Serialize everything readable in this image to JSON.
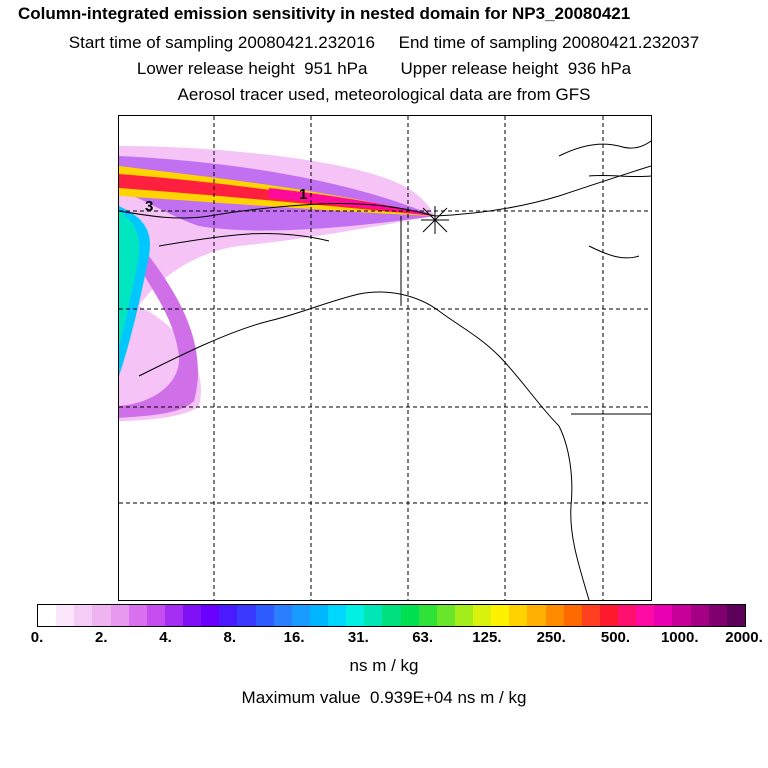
{
  "header": {
    "title": "Column-integrated emission sensitivity in nested domain for NP3_20080421",
    "start_label": "Start time of sampling 20080421.232016",
    "end_label": "End time of sampling 20080421.232037",
    "lower_label": "Lower release height  951 hPa",
    "upper_label": "Upper release height  936 hPa",
    "tracer_label": "Aerosol tracer used, meteorological data are from GFS"
  },
  "map": {
    "labels": [
      {
        "text": "1"
      },
      {
        "text": "3"
      }
    ]
  },
  "colorbar": {
    "colors": [
      "#ffffff",
      "#fbe6fb",
      "#f5ccf5",
      "#efb3f0",
      "#e699ee",
      "#d970ee",
      "#c64ef0",
      "#a52ef3",
      "#8010f5",
      "#6a00ff",
      "#4b1bff",
      "#3a3aff",
      "#2f5cff",
      "#2a7fff",
      "#199cff",
      "#00b7ff",
      "#00d7ff",
      "#00f0e4",
      "#00e6b4",
      "#00e07e",
      "#00e050",
      "#2fe23a",
      "#6ae62a",
      "#a4ec1a",
      "#d8f20d",
      "#fff200",
      "#ffd200",
      "#ffb000",
      "#ff8c00",
      "#ff6a00",
      "#ff4020",
      "#ff1a30",
      "#ff0f6e",
      "#ff0aa4",
      "#e800b0",
      "#c8009a",
      "#a40086",
      "#800070",
      "#5c005a"
    ],
    "tick_labels": [
      "0.",
      "2.",
      "4.",
      "8.",
      "16.",
      "31.",
      "63.",
      "125.",
      "250.",
      "500.",
      "1000.",
      "2000."
    ],
    "units": "ns m / kg"
  },
  "footer": {
    "max_value": "Maximum value  0.939E+04 ns m / kg"
  }
}
